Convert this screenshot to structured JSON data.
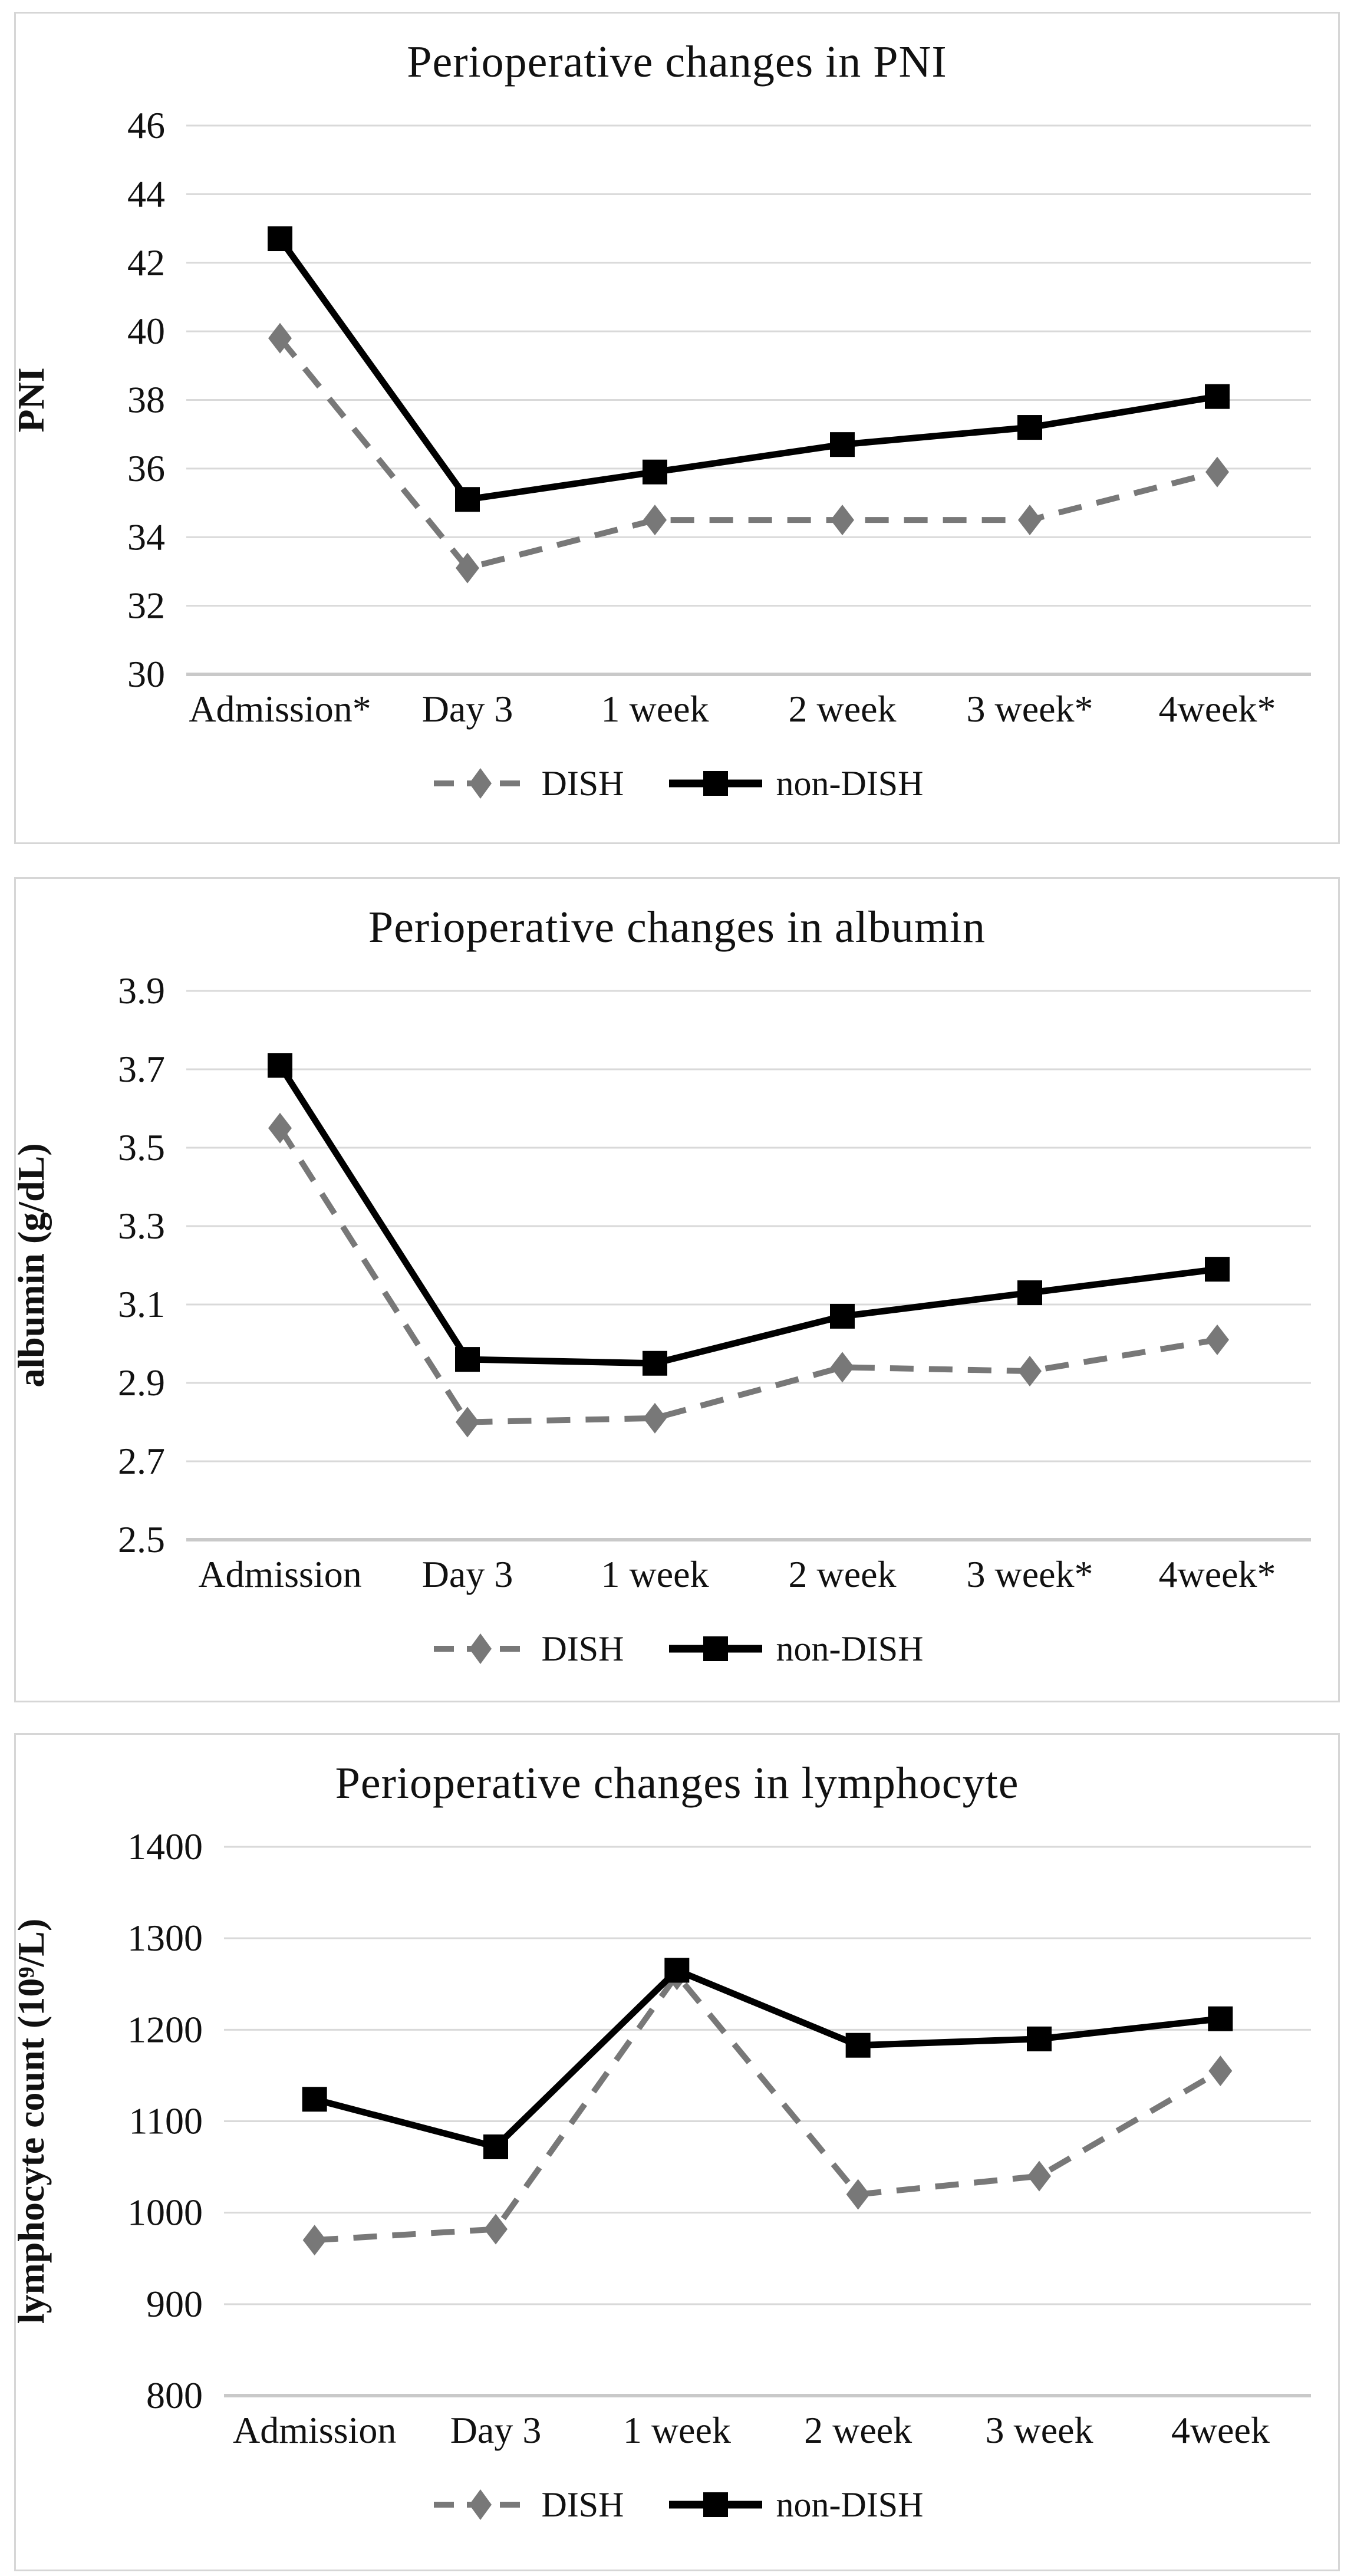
{
  "page": {
    "background": "#ffffff"
  },
  "colors": {
    "dish": "#787878",
    "non_dish": "#000000",
    "gridline": "#d9d9d9",
    "axis_line": "#c9c9c9",
    "panel_border": "#d6d6d6",
    "text": "#111111",
    "background": "#ffffff"
  },
  "legend": {
    "dish_label": "DISH",
    "non_dish_label": "non-DISH"
  },
  "chart_data": [
    {
      "type": "line",
      "title": "Perioperative changes in PNI",
      "ylabel": "PNI",
      "xlabel": "",
      "categories": [
        "Admission*",
        "Day 3",
        "1 week",
        "2 week",
        "3 week*",
        "4week*"
      ],
      "ylim": [
        30,
        46
      ],
      "yticks": [
        "30",
        "32",
        "34",
        "36",
        "38",
        "40",
        "42",
        "44",
        "46"
      ],
      "grid": true,
      "legend_position": "bottom",
      "series": [
        {
          "name": "DISH",
          "marker": "diamond",
          "line_style": "dashed",
          "color": "#787878",
          "values": [
            39.8,
            33.1,
            34.5,
            34.5,
            34.5,
            35.9
          ]
        },
        {
          "name": "non-DISH",
          "marker": "square",
          "line_style": "solid",
          "color": "#000000",
          "values": [
            42.7,
            35.1,
            35.9,
            36.7,
            37.2,
            38.1
          ]
        }
      ]
    },
    {
      "type": "line",
      "title": "Perioperative changes in albumin",
      "ylabel": "albumin (g/dL)",
      "xlabel": "",
      "categories": [
        "Admission",
        "Day 3",
        "1 week",
        "2 week",
        "3 week*",
        "4week*"
      ],
      "ylim": [
        2.5,
        3.9
      ],
      "yticks": [
        "2.5",
        "2.7",
        "2.9",
        "3.1",
        "3.3",
        "3.5",
        "3.7",
        "3.9"
      ],
      "grid": true,
      "legend_position": "bottom",
      "series": [
        {
          "name": "DISH",
          "marker": "diamond",
          "line_style": "dashed",
          "color": "#787878",
          "values": [
            3.55,
            2.8,
            2.81,
            2.94,
            2.93,
            3.01
          ]
        },
        {
          "name": "non-DISH",
          "marker": "square",
          "line_style": "solid",
          "color": "#000000",
          "values": [
            3.71,
            2.96,
            2.95,
            3.07,
            3.13,
            3.19
          ]
        }
      ]
    },
    {
      "type": "line",
      "title": "Perioperative changes in lymphocyte",
      "ylabel": "lymphocyte count (10⁹/L)",
      "xlabel": "",
      "categories": [
        "Admission",
        "Day 3",
        "1 week",
        "2 week",
        "3 week",
        "4week"
      ],
      "ylim": [
        800,
        1400
      ],
      "yticks": [
        "800",
        "900",
        "1000",
        "1100",
        "1200",
        "1300",
        "1400"
      ],
      "grid": true,
      "legend_position": "bottom",
      "series": [
        {
          "name": "DISH",
          "marker": "diamond",
          "line_style": "dashed",
          "color": "#787878",
          "values": [
            970,
            982,
            1260,
            1020,
            1040,
            1155
          ]
        },
        {
          "name": "non-DISH",
          "marker": "square",
          "line_style": "solid",
          "color": "#000000",
          "values": [
            1124,
            1072,
            1265,
            1183,
            1190,
            1212
          ]
        }
      ]
    }
  ]
}
